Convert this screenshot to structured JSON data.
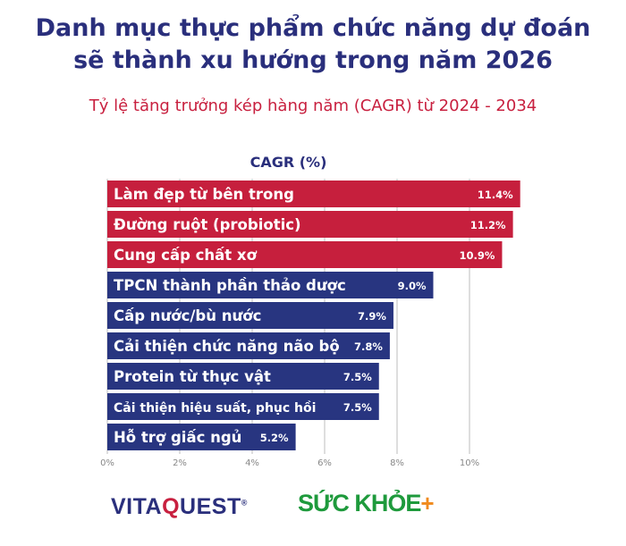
{
  "title_line1": "Danh mục thực phẩm chức năng dự đoán",
  "title_line2": "sẽ thành xu hướng trong năm 2026",
  "subtitle": "Tỷ lệ tăng trưởng kép hàng năm (CAGR) từ 2024 - 2034",
  "logos": {
    "left": "VITAQUEST",
    "right": "SỨC KHỎE+"
  },
  "colors": {
    "highlight": "#c61f3d",
    "default": "#283580",
    "title": "#2a2f7c",
    "subtitle": "#c8203f",
    "grid": "#c8c8c8"
  },
  "chart_data": {
    "type": "bar",
    "orientation": "horizontal",
    "xlabel": "CAGR (%)",
    "categories": [
      "Làm đẹp từ bên trong",
      "Đường ruột (probiotic)",
      "Cung cấp chất xơ",
      "TPCN thành phần thảo dược",
      "Cấp nước/bù nước",
      "Cải thiện chức năng não bộ",
      "Protein từ thực vật",
      "Cải thiện hiệu suất, phục hồi",
      "Hỗ trợ giấc ngủ"
    ],
    "values": [
      11.4,
      11.2,
      10.9,
      9.0,
      7.9,
      7.8,
      7.5,
      7.5,
      5.2
    ],
    "data_labels": [
      "11.4%",
      "11.2%",
      "10.9%",
      "9.0%",
      "7.9%",
      "7.8%",
      "7.5%",
      "7.5%",
      "5.2%"
    ],
    "highlighted": [
      true,
      true,
      true,
      false,
      false,
      false,
      false,
      false,
      false
    ],
    "xlim": [
      0,
      11.5
    ],
    "xticks": [
      0,
      2,
      4,
      6,
      8,
      10
    ],
    "xtick_labels": [
      "0%",
      "2%",
      "4%",
      "6%",
      "8%",
      "10%"
    ],
    "grid": true
  }
}
